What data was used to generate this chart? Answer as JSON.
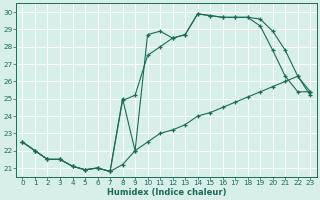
{
  "xlabel": "Humidex (Indice chaleur)",
  "bg_color": "#d8eee8",
  "grid_color": "#ffffff",
  "line_color": "#1a6b5a",
  "xlim": [
    -0.5,
    23.5
  ],
  "ylim": [
    20.5,
    30.5
  ],
  "xticks": [
    0,
    1,
    2,
    3,
    4,
    5,
    6,
    7,
    8,
    9,
    10,
    11,
    12,
    13,
    14,
    15,
    16,
    17,
    18,
    19,
    20,
    21,
    22,
    23
  ],
  "yticks": [
    21,
    22,
    23,
    24,
    25,
    26,
    27,
    28,
    29,
    30
  ],
  "line1_x": [
    0,
    1,
    2,
    3,
    4,
    5,
    6,
    7,
    8,
    9,
    10,
    11,
    12,
    13,
    14,
    15,
    16,
    17,
    18,
    19,
    20,
    21,
    22,
    23
  ],
  "line1_y": [
    22.5,
    22.0,
    21.5,
    21.5,
    21.1,
    20.9,
    21.0,
    20.8,
    21.2,
    22.0,
    22.5,
    23.0,
    23.2,
    23.5,
    24.0,
    24.2,
    24.5,
    24.8,
    25.1,
    25.4,
    25.7,
    26.0,
    26.3,
    25.2
  ],
  "line2_x": [
    0,
    1,
    2,
    3,
    4,
    5,
    6,
    7,
    8,
    9,
    10,
    11,
    12,
    13,
    14,
    15,
    16,
    17,
    18,
    19,
    20,
    21,
    22,
    23
  ],
  "line2_y": [
    22.5,
    22.0,
    21.5,
    21.5,
    21.1,
    20.9,
    21.0,
    20.8,
    25.0,
    22.0,
    28.7,
    28.9,
    28.5,
    28.7,
    29.9,
    29.8,
    29.7,
    29.7,
    29.7,
    29.6,
    28.9,
    27.8,
    26.3,
    25.4
  ],
  "line3_x": [
    0,
    1,
    2,
    3,
    4,
    5,
    6,
    7,
    8,
    9,
    10,
    11,
    12,
    13,
    14,
    15,
    16,
    17,
    18,
    19,
    20,
    21,
    22,
    23
  ],
  "line3_y": [
    22.5,
    22.0,
    21.5,
    21.5,
    21.1,
    20.9,
    21.0,
    20.8,
    24.9,
    25.2,
    27.5,
    28.0,
    28.5,
    28.7,
    29.9,
    29.8,
    29.7,
    29.7,
    29.7,
    29.2,
    27.8,
    26.3,
    25.4,
    25.4
  ]
}
